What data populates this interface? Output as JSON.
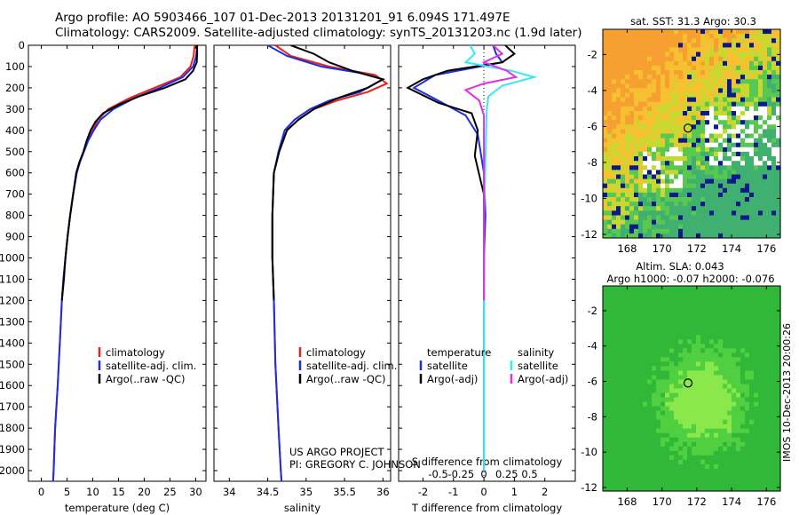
{
  "header": {
    "line1": "Argo profile: AO 5903466_107 01-Dec-2013 20131201_91 6.094S 171.497E",
    "line2": "Climatology: CARS2009. Satellite-adjusted climatology: synTS_20131203.nc (1.9d later)"
  },
  "side_label": "IMOS 10-Dec-2013 20:00:26",
  "colors": {
    "climatology": "#e8201c",
    "satellite": "#1c2fe0",
    "argo": "#000000",
    "sal_satellite": "#37e8f0",
    "sal_argo": "#e030e0",
    "cross": "#000000"
  },
  "chart_data": [
    {
      "name": "temperature",
      "type": "line",
      "xlabel": "temperature (deg C)",
      "ylabel": "",
      "xlim": [
        -2.5,
        32
      ],
      "ylim": [
        0,
        2050
      ],
      "y_inverted": true,
      "xticks": [
        0,
        5,
        10,
        15,
        20,
        25,
        30
      ],
      "yticks": [
        0,
        100,
        200,
        300,
        400,
        500,
        600,
        700,
        800,
        900,
        1000,
        1100,
        1200,
        1300,
        1400,
        1500,
        1600,
        1700,
        1800,
        1900,
        2000
      ],
      "legend": [
        "climatology",
        "satellite-adj. clim.",
        "Argo(..raw -QC)"
      ],
      "series": [
        {
          "name": "climatology",
          "color_key": "climatology",
          "points": [
            [
              29.8,
              0
            ],
            [
              29.6,
              50
            ],
            [
              29,
              100
            ],
            [
              27,
              150
            ],
            [
              22,
              200
            ],
            [
              17,
              250
            ],
            [
              13,
              300
            ],
            [
              11,
              350
            ],
            [
              10,
              400
            ],
            [
              9,
              450
            ],
            [
              8.2,
              500
            ],
            [
              7.4,
              550
            ],
            [
              6.8,
              600
            ],
            [
              6.2,
              700
            ],
            [
              5.6,
              800
            ],
            [
              5.1,
              900
            ],
            [
              4.7,
              1000
            ],
            [
              4.3,
              1100
            ],
            [
              4.0,
              1200
            ],
            [
              3.6,
              1400
            ],
            [
              3.2,
              1600
            ],
            [
              2.7,
              1800
            ],
            [
              2.4,
              2000
            ],
            [
              2.3,
              2050
            ]
          ]
        },
        {
          "name": "satellite",
          "color_key": "satellite",
          "points": [
            [
              30.3,
              0
            ],
            [
              30.1,
              50
            ],
            [
              29.5,
              100
            ],
            [
              27.5,
              150
            ],
            [
              23,
              200
            ],
            [
              18,
              250
            ],
            [
              14,
              300
            ],
            [
              11.5,
              350
            ],
            [
              10.2,
              400
            ],
            [
              9.1,
              450
            ],
            [
              8.3,
              500
            ],
            [
              7.5,
              550
            ],
            [
              6.9,
              600
            ],
            [
              6.2,
              700
            ],
            [
              5.6,
              800
            ],
            [
              5.1,
              900
            ],
            [
              4.7,
              1000
            ],
            [
              4.3,
              1100
            ],
            [
              4.0,
              1200
            ],
            [
              3.6,
              1400
            ],
            [
              3.2,
              1600
            ],
            [
              2.7,
              1800
            ],
            [
              2.4,
              2000
            ],
            [
              2.3,
              2050
            ]
          ]
        },
        {
          "name": "argo",
          "color_key": "argo",
          "points": [
            [
              30.3,
              0
            ],
            [
              30.3,
              40
            ],
            [
              30.2,
              80
            ],
            [
              29.5,
              120
            ],
            [
              28,
              160
            ],
            [
              24,
              200
            ],
            [
              19,
              240
            ],
            [
              15,
              280
            ],
            [
              12,
              320
            ],
            [
              10.5,
              360
            ],
            [
              9.6,
              400
            ],
            [
              8.8,
              450
            ],
            [
              8.2,
              500
            ],
            [
              7.4,
              550
            ],
            [
              6.8,
              600
            ],
            [
              6.2,
              700
            ],
            [
              5.6,
              800
            ],
            [
              5.1,
              900
            ],
            [
              4.7,
              1000
            ],
            [
              4.4,
              1100
            ],
            [
              4.0,
              1200
            ]
          ]
        }
      ]
    },
    {
      "name": "salinity",
      "type": "line",
      "xlabel": "salinity",
      "xlim": [
        33.8,
        36.1
      ],
      "ylim": [
        0,
        2050
      ],
      "y_inverted": true,
      "xticks": [
        34,
        34.5,
        35,
        35.5,
        36
      ],
      "legend": [
        "climatology",
        "satellite-adj. clim.",
        "Argo(..raw -QC)"
      ],
      "annotations": [
        "US ARGO PROJECT",
        "PI: GREGORY C. JOHNSON"
      ],
      "series": [
        {
          "name": "climatology",
          "color_key": "climatology",
          "points": [
            [
              34.6,
              0
            ],
            [
              34.8,
              50
            ],
            [
              35.3,
              100
            ],
            [
              35.9,
              140
            ],
            [
              36.05,
              180
            ],
            [
              35.8,
              220
            ],
            [
              35.4,
              260
            ],
            [
              35.1,
              300
            ],
            [
              34.9,
              350
            ],
            [
              34.75,
              400
            ],
            [
              34.65,
              500
            ],
            [
              34.58,
              600
            ],
            [
              34.56,
              800
            ],
            [
              34.56,
              1000
            ],
            [
              34.58,
              1200
            ],
            [
              34.6,
              1500
            ],
            [
              34.64,
              1800
            ],
            [
              34.67,
              2000
            ],
            [
              34.68,
              2050
            ]
          ]
        },
        {
          "name": "satellite",
          "color_key": "satellite",
          "points": [
            [
              34.5,
              0
            ],
            [
              34.75,
              50
            ],
            [
              35.2,
              100
            ],
            [
              35.7,
              130
            ],
            [
              36.0,
              160
            ],
            [
              35.7,
              220
            ],
            [
              35.3,
              260
            ],
            [
              35.05,
              300
            ],
            [
              34.85,
              350
            ],
            [
              34.72,
              400
            ],
            [
              34.64,
              500
            ],
            [
              34.58,
              600
            ],
            [
              34.56,
              800
            ],
            [
              34.56,
              1000
            ],
            [
              34.58,
              1200
            ],
            [
              34.6,
              1500
            ],
            [
              34.64,
              1800
            ],
            [
              34.67,
              2000
            ],
            [
              34.68,
              2050
            ]
          ]
        },
        {
          "name": "argo",
          "color_key": "argo",
          "points": [
            [
              34.8,
              0
            ],
            [
              35.1,
              40
            ],
            [
              35.3,
              80
            ],
            [
              35.6,
              120
            ],
            [
              36.0,
              160
            ],
            [
              35.8,
              200
            ],
            [
              35.4,
              250
            ],
            [
              35.1,
              300
            ],
            [
              34.9,
              350
            ],
            [
              34.75,
              400
            ],
            [
              34.65,
              500
            ],
            [
              34.58,
              600
            ],
            [
              34.56,
              800
            ],
            [
              34.56,
              1000
            ],
            [
              34.58,
              1200
            ]
          ]
        }
      ]
    },
    {
      "name": "difference",
      "type": "line",
      "xlabel": "T difference from climatology",
      "top_xlabel": "S difference from climatology",
      "xlim": [
        -2.8,
        3.0
      ],
      "ylim": [
        0,
        2050
      ],
      "y_inverted": true,
      "xticks": [
        -2,
        -1,
        0,
        1,
        2
      ],
      "top_xticks": [
        {
          "v": -0.5,
          "label": "-0.5"
        },
        {
          "v": -0.25,
          "label": "-0.25"
        },
        {
          "v": 0,
          "label": "0"
        },
        {
          "v": 0.25,
          "label": "0.25"
        },
        {
          "v": 0.5,
          "label": "0.5"
        }
      ],
      "s_scale_per_T": 3,
      "legend_left": {
        "header": "temperature",
        "items": [
          "satellite",
          "Argo(-adj)"
        ]
      },
      "legend_right": {
        "header": "salinity",
        "items": [
          "satellite",
          "Argo(-adj)"
        ]
      },
      "series": [
        {
          "name": "T satellite",
          "color_key": "satellite",
          "points": [
            [
              0.3,
              0
            ],
            [
              0.4,
              40
            ],
            [
              0.6,
              80
            ],
            [
              -1.6,
              140
            ],
            [
              -2.3,
              200
            ],
            [
              -1.5,
              260
            ],
            [
              -0.6,
              330
            ],
            [
              -0.2,
              420
            ],
            [
              0,
              600
            ],
            [
              0.05,
              800
            ],
            [
              0,
              1000
            ],
            [
              0,
              1500
            ],
            [
              0,
              2000
            ]
          ]
        },
        {
          "name": "T argo",
          "color_key": "argo",
          "points": [
            [
              0.7,
              0
            ],
            [
              1.0,
              40
            ],
            [
              0.6,
              80
            ],
            [
              -1.2,
              120
            ],
            [
              -2.0,
              160
            ],
            [
              -2.5,
              200
            ],
            [
              -1.5,
              270
            ],
            [
              -0.4,
              320
            ],
            [
              -0.2,
              400
            ],
            [
              -0.3,
              520
            ],
            [
              -0.1,
              640
            ],
            [
              0,
              700
            ],
            [
              0,
              1100
            ]
          ]
        },
        {
          "name": "S satellite",
          "color_key": "sal_satellite",
          "points": [
            [
              -0.15,
              0
            ],
            [
              -0.1,
              40
            ],
            [
              -0.2,
              80
            ],
            [
              0.3,
              120
            ],
            [
              0.55,
              150
            ],
            [
              0.2,
              190
            ],
            [
              0.05,
              240
            ],
            [
              0.03,
              300
            ],
            [
              0.02,
              500
            ],
            [
              0,
              800
            ],
            [
              0,
              1200
            ],
            [
              0,
              1600
            ],
            [
              0,
              2000
            ]
          ]
        },
        {
          "name": "S argo",
          "color_key": "sal_argo",
          "points": [
            [
              0.1,
              0
            ],
            [
              0.2,
              40
            ],
            [
              0.0,
              80
            ],
            [
              0.25,
              120
            ],
            [
              0.35,
              150
            ],
            [
              0.0,
              180
            ],
            [
              -0.2,
              210
            ],
            [
              -0.05,
              260
            ],
            [
              0,
              330
            ],
            [
              0,
              400
            ],
            [
              0,
              800
            ],
            [
              0,
              1200
            ]
          ]
        }
      ]
    },
    {
      "name": "sat_sst_map",
      "type": "heatmap",
      "title": "sat. SST: 31.3  Argo: 30.3",
      "xlim": [
        166.6,
        176.8
      ],
      "ylim": [
        -12.2,
        -0.6
      ],
      "xticks": [
        168,
        170,
        172,
        174,
        176
      ],
      "yticks": [
        -2,
        -4,
        -6,
        -8,
        -10,
        -12
      ],
      "marker": [
        171.497,
        -6.094
      ]
    },
    {
      "name": "altimetry_map",
      "type": "heatmap",
      "title": "Altim. SLA: 0.043",
      "subtitle": "Argo h1000: -0.07  h2000: -0.076",
      "xlim": [
        166.6,
        176.8
      ],
      "ylim": [
        -12.2,
        -0.6
      ],
      "xticks": [
        168,
        170,
        172,
        174,
        176
      ],
      "yticks": [
        -2,
        -4,
        -6,
        -8,
        -10,
        -12
      ],
      "marker": [
        171.497,
        -6.094
      ]
    }
  ]
}
